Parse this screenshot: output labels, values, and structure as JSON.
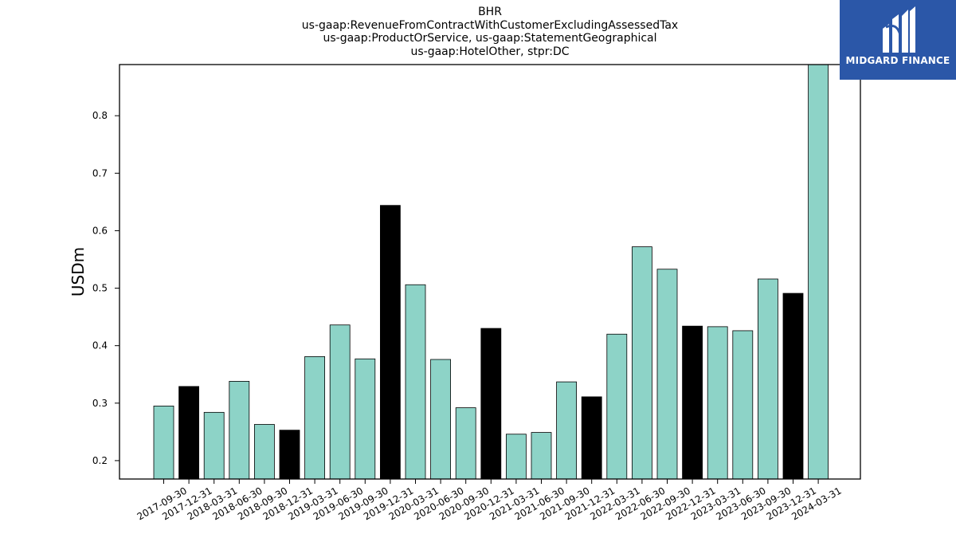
{
  "title_lines": [
    "BHR",
    "us-gaap:RevenueFromContractWithCustomerExcludingAssessedTax",
    "us-gaap:ProductOrService, us-gaap:StatementGeographical",
    "us-gaap:HotelOther, stpr:DC"
  ],
  "logo": {
    "text": "MIDGARD FINANCE",
    "bg_color": "#2b57a8",
    "icon": "midgard-logo-icon"
  },
  "colors": {
    "q1_q3": "#8dd3c7",
    "q4": "#000000",
    "edge": "#000000"
  },
  "chart_data": {
    "type": "bar",
    "title": "BHR us-gaap:RevenueFromContractWithCustomerExcludingAssessedTax us-gaap:ProductOrService, us-gaap:StatementGeographical us-gaap:HotelOther, stpr:DC",
    "xlabel": "",
    "ylabel": "USDm",
    "ylim": [
      0.168,
      0.889
    ],
    "yticks": [
      0.2,
      0.3,
      0.4,
      0.5,
      0.6,
      0.7,
      0.8
    ],
    "grid": false,
    "legend": "none",
    "categories": [
      "2017-09-30",
      "2017-12-31",
      "2018-03-31",
      "2018-06-30",
      "2018-09-30",
      "2018-12-31",
      "2019-03-31",
      "2019-06-30",
      "2019-09-30",
      "2019-12-31",
      "2020-03-31",
      "2020-06-30",
      "2020-09-30",
      "2020-12-31",
      "2021-03-31",
      "2021-06-30",
      "2021-09-30",
      "2021-12-31",
      "2022-03-31",
      "2022-06-30",
      "2022-09-30",
      "2022-12-31",
      "2023-03-31",
      "2023-06-30",
      "2023-09-30",
      "2023-12-31",
      "2024-03-31"
    ],
    "values": [
      0.295,
      0.329,
      0.284,
      0.338,
      0.263,
      0.253,
      0.381,
      0.436,
      0.377,
      0.644,
      0.506,
      0.376,
      0.292,
      0.43,
      0.246,
      0.249,
      0.337,
      0.311,
      0.42,
      0.572,
      0.533,
      0.434,
      0.433,
      0.426,
      0.516,
      0.491,
      0.889
    ]
  }
}
